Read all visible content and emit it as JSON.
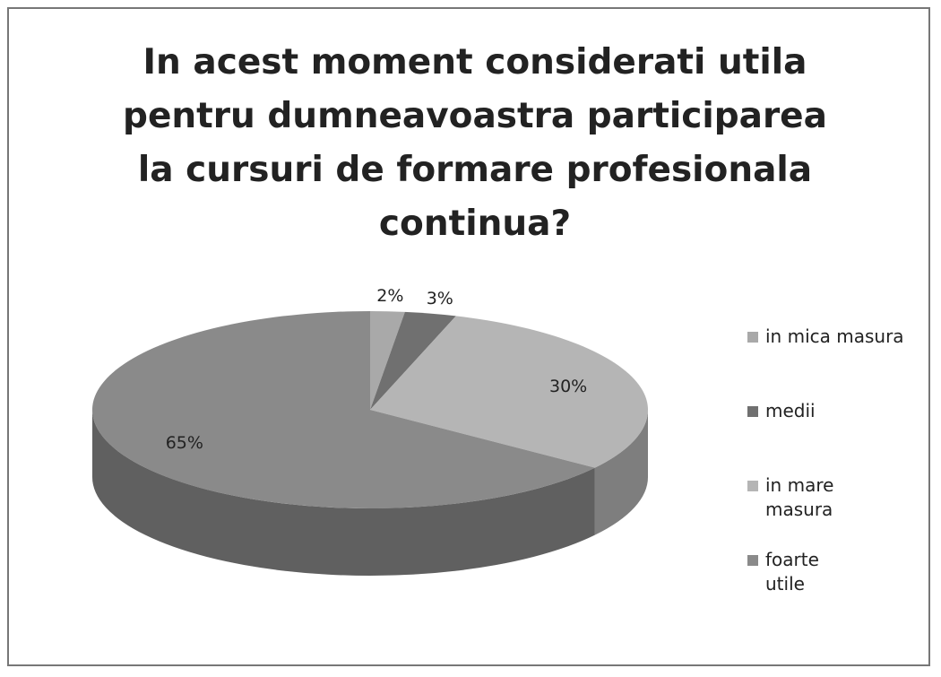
{
  "chart_data": {
    "type": "pie",
    "title": "In acest moment considerati utila pentru dumneavoastra participarea la cursuri de formare profesionala continua?",
    "categories": [
      "in mica masura",
      "medii",
      "in mare masura",
      "foarte utile"
    ],
    "values": [
      2,
      3,
      30,
      65
    ],
    "value_labels": [
      "2%",
      "3%",
      "30%",
      "65%"
    ],
    "colors": [
      "#a9a9a9",
      "#707070",
      "#b5b5b5",
      "#8a8a8a"
    ],
    "legend": "right"
  }
}
